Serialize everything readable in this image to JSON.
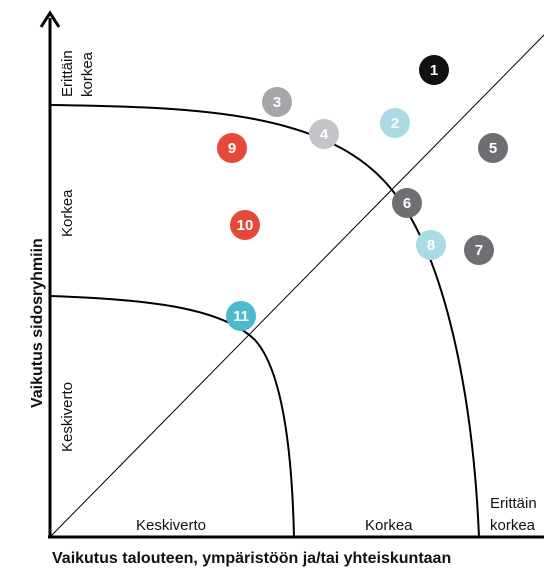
{
  "axes": {
    "x_title": "Vaikutus talouteen, ympäristöön ja/tai yhteiskuntaan",
    "y_title": "Vaikutus sidosryhmiin"
  },
  "x_zone_labels": {
    "average": "Keskiverto",
    "high": "Korkea",
    "very_high_line1": "Erittäin",
    "very_high_line2": "korkea"
  },
  "y_zone_labels": {
    "average": "Keskiverto",
    "high": "Korkea",
    "very_high_line1": "Erittäin",
    "very_high_line2": "korkea"
  },
  "colors": {
    "black": "#111111",
    "dark_gray": "#6e6e73",
    "mid_gray": "#a5a5aa",
    "light_gray": "#c4c4c8",
    "light_blue": "#a8dbe3",
    "teal": "#4cb9cc",
    "red": "#e5493a",
    "line": "#000000"
  },
  "markers": [
    {
      "label": "1",
      "color": "black"
    },
    {
      "label": "2",
      "color": "light_blue"
    },
    {
      "label": "3",
      "color": "mid_gray"
    },
    {
      "label": "4",
      "color": "light_gray"
    },
    {
      "label": "5",
      "color": "dark_gray"
    },
    {
      "label": "6",
      "color": "dark_gray"
    },
    {
      "label": "7",
      "color": "dark_gray"
    },
    {
      "label": "8",
      "color": "light_blue"
    },
    {
      "label": "9",
      "color": "red"
    },
    {
      "label": "10",
      "color": "red"
    },
    {
      "label": "11",
      "color": "teal"
    }
  ]
}
